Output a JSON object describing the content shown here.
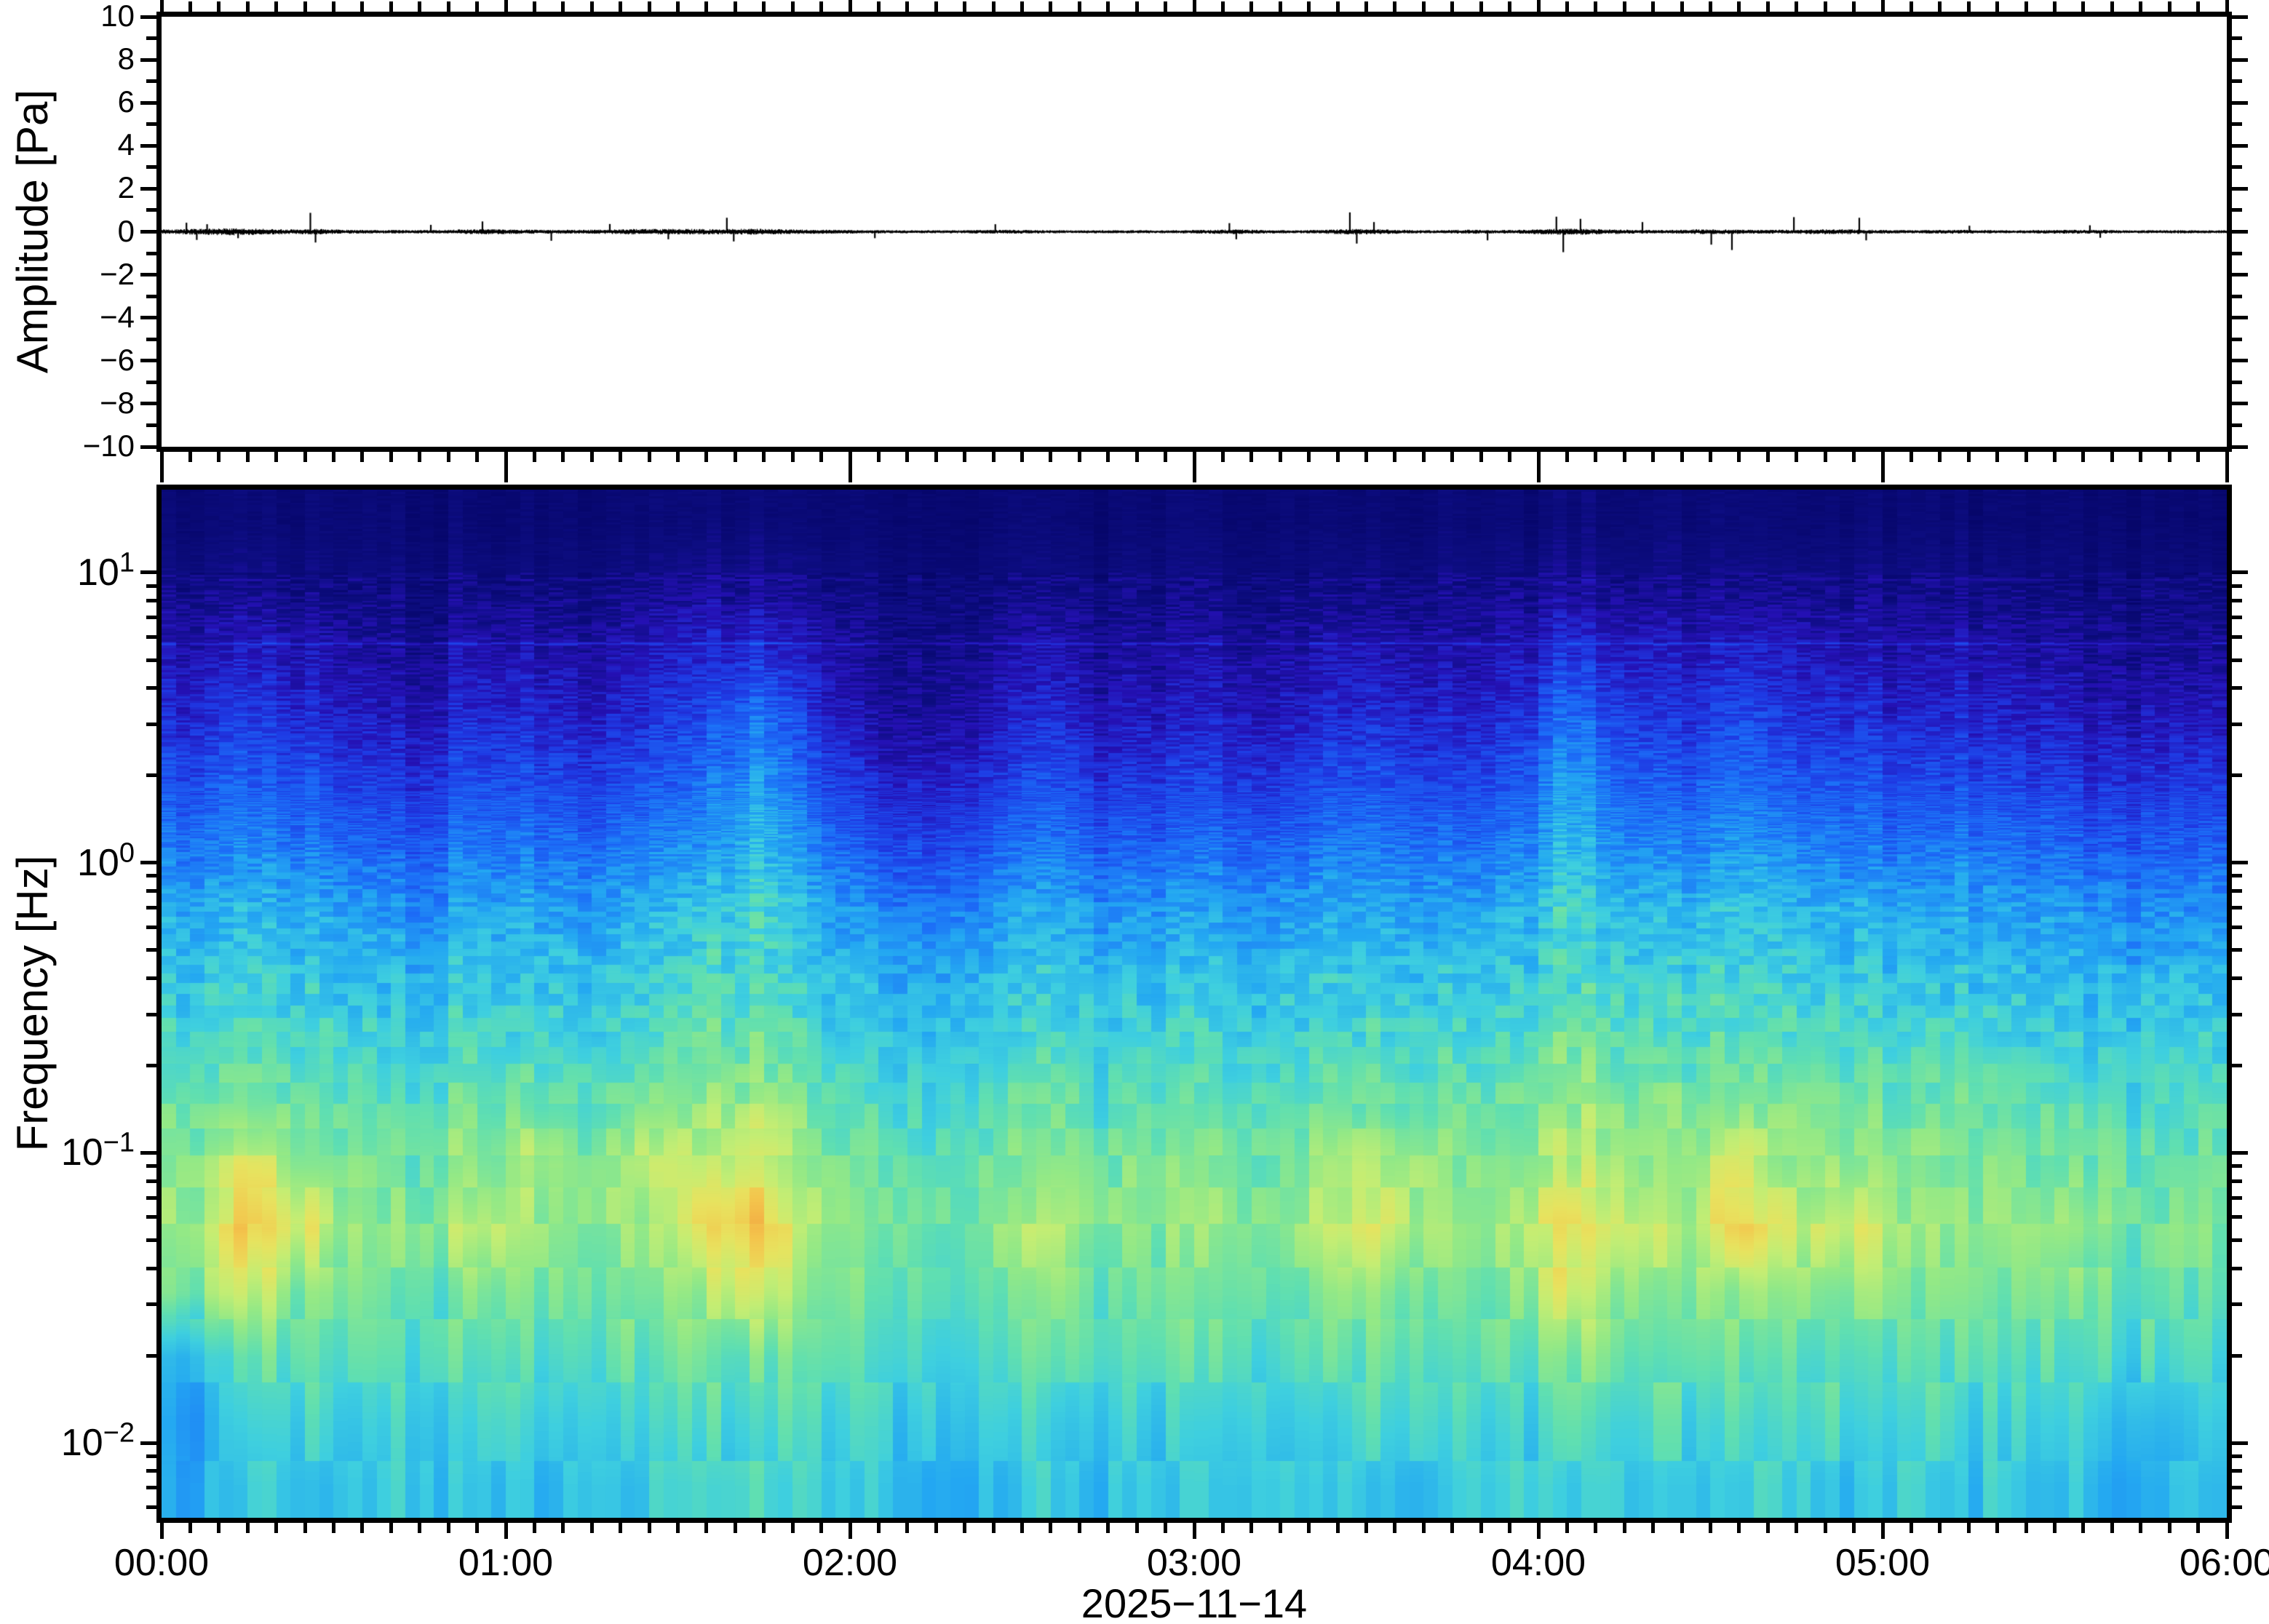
{
  "figure": {
    "background": "#ffffff",
    "frame_color": "#000000",
    "kind": "waveform-and-spectrogram"
  },
  "top_panel": {
    "ylabel": "Amplitude [Pa]",
    "ylim": [
      -10,
      10
    ],
    "yticks": [
      {
        "label": "10",
        "value": 10
      },
      {
        "label": "8",
        "value": 8
      },
      {
        "label": "6",
        "value": 6
      },
      {
        "label": "4",
        "value": 4
      },
      {
        "label": "2",
        "value": 2
      },
      {
        "label": "0",
        "value": 0
      },
      {
        "label": "−2",
        "value": -2
      },
      {
        "label": "−4",
        "value": -4
      },
      {
        "label": "−6",
        "value": -6
      },
      {
        "label": "−8",
        "value": -8
      },
      {
        "label": "−10",
        "value": -10
      }
    ],
    "minor_tick_step": 1
  },
  "bottom_panel": {
    "ylabel": "Frequency [Hz]",
    "yscale": "log",
    "ylim_hz": [
      0.0055,
      19.3
    ],
    "yticks": [
      {
        "mantissa": "10",
        "exponent": "1",
        "value": 10
      },
      {
        "mantissa": "10",
        "exponent": "0",
        "value": 1
      },
      {
        "mantissa": "10",
        "exponent": "−1",
        "value": 0.1
      },
      {
        "mantissa": "10",
        "exponent": "−2",
        "value": 0.01
      }
    ]
  },
  "xaxis": {
    "ticks": [
      {
        "label": "00:00",
        "hour": 0
      },
      {
        "label": "01:00",
        "hour": 1
      },
      {
        "label": "02:00",
        "hour": 2
      },
      {
        "label": "03:00",
        "hour": 3
      },
      {
        "label": "04:00",
        "hour": 4
      },
      {
        "label": "05:00",
        "hour": 5
      },
      {
        "label": "06:00",
        "hour": 6
      }
    ],
    "minor_interval_minutes": 5,
    "major_interval_minutes": 60,
    "date": "2025−11−14"
  },
  "chart_data": [
    {
      "type": "line",
      "name": "pressure-waveform",
      "title": "",
      "xlabel": "2025−11−14",
      "ylabel": "Amplitude [Pa]",
      "x_range_hours": [
        0,
        6
      ],
      "ylim": [
        -10,
        10
      ],
      "line_color": "#000000",
      "description": "Near-flat noisy pressure trace centred on 0 Pa; peak excursions under ~1 Pa. envelope_pa gives half-amplitude of noise per 5-minute bin; spikes_pa lists discrete transients as [hour, amplitude_Pa].",
      "envelope_pa": [
        0.1,
        0.14,
        0.16,
        0.13,
        0.1,
        0.12,
        0.08,
        0.07,
        0.07,
        0.07,
        0.1,
        0.11,
        0.09,
        0.08,
        0.08,
        0.09,
        0.12,
        0.12,
        0.12,
        0.11,
        0.13,
        0.11,
        0.09,
        0.08,
        0.07,
        0.06,
        0.06,
        0.06,
        0.07,
        0.08,
        0.07,
        0.06,
        0.06,
        0.06,
        0.06,
        0.06,
        0.08,
        0.1,
        0.07,
        0.06,
        0.08,
        0.12,
        0.1,
        0.07,
        0.06,
        0.09,
        0.07,
        0.08,
        0.13,
        0.13,
        0.1,
        0.08,
        0.07,
        0.1,
        0.1,
        0.08,
        0.08,
        0.1,
        0.11,
        0.09,
        0.07,
        0.07,
        0.08,
        0.07,
        0.06,
        0.07,
        0.08,
        0.08,
        0.06,
        0.06,
        0.07,
        0.06
      ],
      "spikes_pa": [
        [
          0.07,
          0.42
        ],
        [
          0.1,
          -0.38
        ],
        [
          0.13,
          0.35
        ],
        [
          0.22,
          -0.3
        ],
        [
          0.43,
          0.88
        ],
        [
          0.445,
          -0.5
        ],
        [
          0.78,
          0.32
        ],
        [
          0.93,
          0.48
        ],
        [
          1.13,
          -0.42
        ],
        [
          1.3,
          0.36
        ],
        [
          1.47,
          -0.35
        ],
        [
          1.64,
          0.65
        ],
        [
          1.66,
          -0.45
        ],
        [
          2.07,
          -0.3
        ],
        [
          2.42,
          0.35
        ],
        [
          3.1,
          0.4
        ],
        [
          3.12,
          -0.35
        ],
        [
          3.45,
          0.9
        ],
        [
          3.47,
          -0.55
        ],
        [
          3.52,
          0.45
        ],
        [
          3.85,
          -0.4
        ],
        [
          4.05,
          0.7
        ],
        [
          4.07,
          -0.95
        ],
        [
          4.12,
          0.6
        ],
        [
          4.3,
          0.45
        ],
        [
          4.5,
          -0.6
        ],
        [
          4.56,
          -0.85
        ],
        [
          4.74,
          0.68
        ],
        [
          4.93,
          0.65
        ],
        [
          4.95,
          -0.4
        ],
        [
          5.25,
          0.28
        ],
        [
          5.6,
          0.3
        ],
        [
          5.63,
          -0.28
        ]
      ]
    },
    {
      "type": "heatmap",
      "name": "spectrogram",
      "xlabel": "2025−11−14",
      "ylabel": "Frequency [Hz]",
      "x_range_hours": [
        0,
        6
      ],
      "x_bin_minutes": 10,
      "freq_top_hz": 19.3,
      "freq_bottom_hz": 0.0055,
      "freq_scale": "log",
      "row_center_freqs_hz": [
        15,
        9.1,
        5.5,
        3.3,
        2.0,
        1.2,
        0.72,
        0.43,
        0.26,
        0.16,
        0.094,
        0.057,
        0.034,
        0.021,
        0.012,
        0.0074
      ],
      "intensity_grid_percent_rows_high_to_low_freq": [
        [
          4,
          6,
          5,
          4,
          3,
          5,
          5,
          4,
          5,
          6,
          7,
          4,
          3,
          3,
          4,
          5,
          3,
          4,
          4,
          4,
          5,
          5,
          4,
          4,
          6,
          6,
          5,
          6,
          5,
          5,
          4,
          4,
          4,
          4,
          3,
          4
        ],
        [
          9,
          11,
          9,
          7,
          6,
          10,
          9,
          8,
          10,
          12,
          13,
          9,
          6,
          6,
          7,
          9,
          7,
          7,
          8,
          7,
          9,
          10,
          8,
          9,
          12,
          11,
          9,
          11,
          10,
          10,
          8,
          9,
          8,
          7,
          7,
          8
        ],
        [
          16,
          20,
          17,
          13,
          10,
          19,
          17,
          14,
          18,
          22,
          25,
          16,
          10,
          10,
          13,
          17,
          12,
          13,
          14,
          13,
          17,
          18,
          13,
          16,
          24,
          21,
          17,
          21,
          19,
          18,
          14,
          16,
          14,
          13,
          11,
          13
        ],
        [
          22,
          27,
          23,
          18,
          16,
          25,
          23,
          20,
          24,
          29,
          38,
          22,
          13,
          13,
          18,
          23,
          17,
          18,
          20,
          18,
          23,
          24,
          19,
          22,
          36,
          28,
          23,
          30,
          25,
          24,
          20,
          22,
          20,
          18,
          17,
          19
        ],
        [
          29,
          34,
          30,
          25,
          23,
          32,
          30,
          27,
          31,
          36,
          46,
          29,
          20,
          20,
          25,
          30,
          24,
          25,
          27,
          25,
          30,
          31,
          26,
          29,
          44,
          35,
          30,
          37,
          32,
          31,
          27,
          29,
          27,
          25,
          24,
          26
        ],
        [
          37,
          41,
          38,
          33,
          31,
          40,
          38,
          35,
          39,
          43,
          52,
          37,
          29,
          28,
          33,
          38,
          32,
          33,
          35,
          33,
          38,
          39,
          34,
          37,
          50,
          42,
          38,
          44,
          40,
          39,
          35,
          37,
          35,
          33,
          32,
          34
        ],
        [
          46,
          50,
          47,
          43,
          40,
          49,
          47,
          44,
          48,
          52,
          58,
          46,
          39,
          38,
          43,
          47,
          42,
          43,
          44,
          43,
          47,
          48,
          43,
          46,
          56,
          51,
          47,
          53,
          49,
          48,
          44,
          46,
          44,
          43,
          41,
          43
        ],
        [
          51,
          55,
          53,
          49,
          47,
          54,
          53,
          50,
          53,
          57,
          59,
          51,
          47,
          46,
          49,
          53,
          48,
          49,
          50,
          49,
          53,
          53,
          50,
          51,
          57,
          56,
          53,
          56,
          54,
          53,
          50,
          51,
          50,
          49,
          47,
          50
        ],
        [
          56,
          60,
          57,
          54,
          52,
          59,
          57,
          55,
          58,
          61,
          63,
          56,
          52,
          51,
          54,
          57,
          53,
          54,
          55,
          54,
          57,
          58,
          55,
          56,
          62,
          60,
          57,
          60,
          59,
          58,
          55,
          56,
          55,
          54,
          53,
          55
        ],
        [
          61,
          65,
          63,
          59,
          57,
          64,
          63,
          60,
          63,
          67,
          69,
          61,
          57,
          56,
          59,
          63,
          58,
          59,
          60,
          59,
          63,
          63,
          60,
          61,
          67,
          66,
          63,
          66,
          64,
          63,
          60,
          61,
          60,
          59,
          57,
          60
        ],
        [
          65,
          78,
          67,
          63,
          61,
          68,
          73,
          64,
          74,
          71,
          79,
          65,
          61,
          60,
          63,
          67,
          62,
          63,
          64,
          63,
          72,
          72,
          63,
          65,
          72,
          70,
          67,
          75,
          68,
          67,
          64,
          65,
          64,
          63,
          61,
          63
        ],
        [
          67,
          84,
          78,
          65,
          63,
          76,
          69,
          66,
          69,
          80,
          86,
          67,
          63,
          62,
          65,
          72,
          64,
          65,
          66,
          65,
          74,
          76,
          65,
          67,
          82,
          76,
          69,
          82,
          74,
          76,
          66,
          67,
          66,
          70,
          63,
          65
        ],
        [
          64,
          74,
          65,
          62,
          60,
          66,
          65,
          63,
          66,
          69,
          78,
          64,
          60,
          60,
          62,
          65,
          61,
          62,
          63,
          62,
          65,
          66,
          63,
          64,
          74,
          68,
          65,
          68,
          66,
          66,
          63,
          64,
          63,
          62,
          61,
          63
        ],
        [
          48,
          62,
          61,
          58,
          57,
          61,
          61,
          59,
          61,
          63,
          65,
          60,
          57,
          57,
          58,
          61,
          58,
          58,
          59,
          58,
          61,
          61,
          59,
          60,
          64,
          63,
          61,
          63,
          61,
          61,
          59,
          60,
          59,
          58,
          57,
          59
        ],
        [
          45,
          58,
          56,
          54,
          53,
          57,
          56,
          55,
          57,
          59,
          60,
          56,
          53,
          53,
          54,
          56,
          54,
          54,
          55,
          54,
          56,
          57,
          55,
          56,
          59,
          58,
          56,
          58,
          57,
          57,
          55,
          56,
          55,
          54,
          50,
          55
        ],
        [
          47,
          54,
          53,
          51,
          51,
          54,
          53,
          52,
          53,
          55,
          56,
          53,
          51,
          50,
          51,
          53,
          51,
          51,
          52,
          51,
          53,
          53,
          52,
          53,
          55,
          55,
          53,
          55,
          54,
          53,
          52,
          53,
          52,
          51,
          46,
          52
        ]
      ],
      "spectral_lines_hz": [
        {
          "freq_hz": 5.7,
          "boost": 0.09
        },
        {
          "freq_hz": 9.5,
          "boost": 0.04
        }
      ],
      "palette_stops": [
        [
          0.0,
          "#06066a"
        ],
        [
          0.08,
          "#0d0d80"
        ],
        [
          0.17,
          "#2511b4"
        ],
        [
          0.26,
          "#1f3ae4"
        ],
        [
          0.36,
          "#1c6ef8"
        ],
        [
          0.46,
          "#24a8f2"
        ],
        [
          0.54,
          "#3ecfe0"
        ],
        [
          0.6,
          "#5fdfb2"
        ],
        [
          0.67,
          "#93e987"
        ],
        [
          0.73,
          "#c4ee74"
        ],
        [
          0.79,
          "#e8e35f"
        ],
        [
          0.85,
          "#f4c54d"
        ],
        [
          0.92,
          "#f1953a"
        ],
        [
          1.0,
          "#e4661b"
        ]
      ],
      "legend": "none",
      "grid": "off"
    }
  ]
}
